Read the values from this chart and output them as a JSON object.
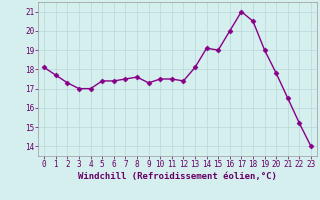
{
  "x": [
    0,
    1,
    2,
    3,
    4,
    5,
    6,
    7,
    8,
    9,
    10,
    11,
    12,
    13,
    14,
    15,
    16,
    17,
    18,
    19,
    20,
    21,
    22,
    23
  ],
  "y": [
    18.1,
    17.7,
    17.3,
    17.0,
    17.0,
    17.4,
    17.4,
    17.5,
    17.6,
    17.3,
    17.5,
    17.5,
    17.4,
    18.1,
    19.1,
    19.0,
    20.0,
    21.0,
    20.5,
    19.0,
    17.8,
    16.5,
    15.2,
    14.0
  ],
  "line_color": "#880088",
  "marker": "D",
  "marker_size": 2.5,
  "bg_color": "#d5eeee",
  "grid_color": "#b8d8d8",
  "xlabel": "Windchill (Refroidissement éolien,°C)",
  "xlim": [
    -0.5,
    23.5
  ],
  "ylim": [
    13.5,
    21.5
  ],
  "yticks": [
    14,
    15,
    16,
    17,
    18,
    19,
    20,
    21
  ],
  "xticks": [
    0,
    1,
    2,
    3,
    4,
    5,
    6,
    7,
    8,
    9,
    10,
    11,
    12,
    13,
    14,
    15,
    16,
    17,
    18,
    19,
    20,
    21,
    22,
    23
  ],
  "tick_label_size": 5.5,
  "xlabel_size": 6.5,
  "line_width": 1.0
}
